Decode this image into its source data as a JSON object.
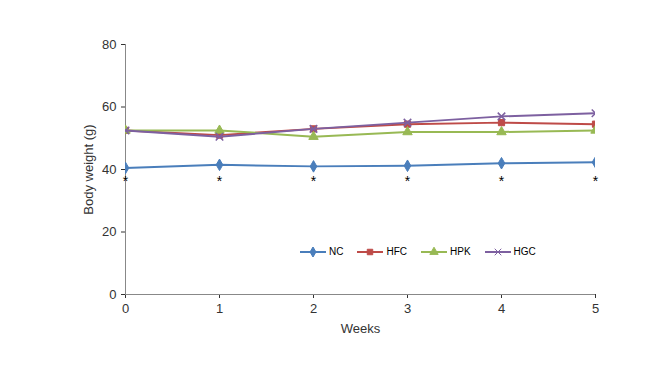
{
  "chart_data": {
    "type": "line",
    "x_label": "Weeks",
    "y_label": "Body weight (g)",
    "x": [
      0,
      1,
      2,
      3,
      4,
      5
    ],
    "xlim": [
      0,
      5
    ],
    "xticks": [
      0,
      1,
      2,
      3,
      4,
      5
    ],
    "ylim": [
      0,
      80
    ],
    "yticks": [
      0,
      20,
      40,
      60,
      80
    ],
    "grid": false,
    "legend": "lower right",
    "series": [
      {
        "name": "NC",
        "color": "#4a7ebb",
        "marker": "diamond",
        "values": [
          40.5,
          41.5,
          41,
          41.2,
          42,
          42.3
        ]
      },
      {
        "name": "HFC",
        "color": "#be4b48",
        "marker": "square",
        "values": [
          52.5,
          51,
          53,
          54.5,
          55,
          54.5
        ]
      },
      {
        "name": "HPK",
        "color": "#98b954",
        "marker": "triangle",
        "values": [
          52.5,
          52.5,
          50.5,
          52,
          52,
          52.5
        ]
      },
      {
        "name": "HGC",
        "color": "#7d60a0",
        "marker": "times",
        "values": [
          52.5,
          50.5,
          53,
          55,
          57,
          58
        ]
      }
    ],
    "annotations": [
      {
        "x": 0,
        "y": 36,
        "text": "*"
      },
      {
        "x": 1,
        "y": 36,
        "text": "*"
      },
      {
        "x": 2,
        "y": 36,
        "text": "*"
      },
      {
        "x": 3,
        "y": 36,
        "text": "*"
      },
      {
        "x": 4,
        "y": 36,
        "text": "*"
      },
      {
        "x": 5,
        "y": 36,
        "text": "*"
      }
    ]
  }
}
